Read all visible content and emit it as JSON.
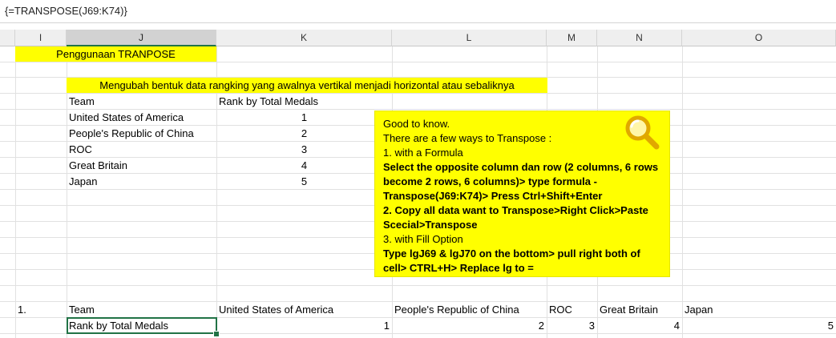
{
  "formula_bar": {
    "text": "{=TRANSPOSE(J69:K74)}"
  },
  "columns": [
    "I",
    "J",
    "K",
    "L",
    "M",
    "N",
    "O"
  ],
  "title_cell": "Penggunaan TRANPOSE",
  "description_cell": "Mengubah bentuk data rangking yang awalnya vertikal menjadi horizontal atau sebaliknya",
  "vertical_table": {
    "headers": [
      "Team",
      "Rank by Total Medals"
    ],
    "rows": [
      {
        "team": "United States of America",
        "rank": "1"
      },
      {
        "team": "People's Republic of China",
        "rank": "2"
      },
      {
        "team": "ROC",
        "rank": "3"
      },
      {
        "team": "Great Britain",
        "rank": "4"
      },
      {
        "team": "Japan",
        "rank": "5"
      }
    ]
  },
  "note": {
    "lines": [
      {
        "text": "Good to know.",
        "bold": false
      },
      {
        "text": "There are a few ways to Transpose :",
        "bold": false
      },
      {
        "text": "1. with a Formula",
        "bold": false
      },
      {
        "text": "Select the opposite column dan row (2 columns, 6 rows become 2 rows, 6 columns)> type formula - Transpose(J69:K74)> Press Ctrl+Shift+Enter",
        "bold": true
      },
      {
        "text": "2. Copy all data want to Transpose>Right Click>Paste Scecial>Transpose",
        "bold": true
      },
      {
        "text": "3. with Fill Option",
        "bold": false
      },
      {
        "text": "Type lgJ69 & lgJ70 on the bottom> pull right both of cell> CTRL+H> Replace lg to =",
        "bold": true
      }
    ],
    "icon": "magnifier-icon",
    "colors": {
      "background": "#ffff00",
      "icon": "#e0a800"
    }
  },
  "horizontal_table": {
    "marker": "1.",
    "row1": [
      "Team",
      "United States of America",
      "People's Republic of China",
      "ROC",
      "Great Britain",
      "Japan"
    ],
    "row2": [
      "Rank by Total Medals",
      "1",
      "2",
      "3",
      "4",
      "5"
    ]
  },
  "colors": {
    "highlight": "#ffff00",
    "selection": "#217346"
  }
}
